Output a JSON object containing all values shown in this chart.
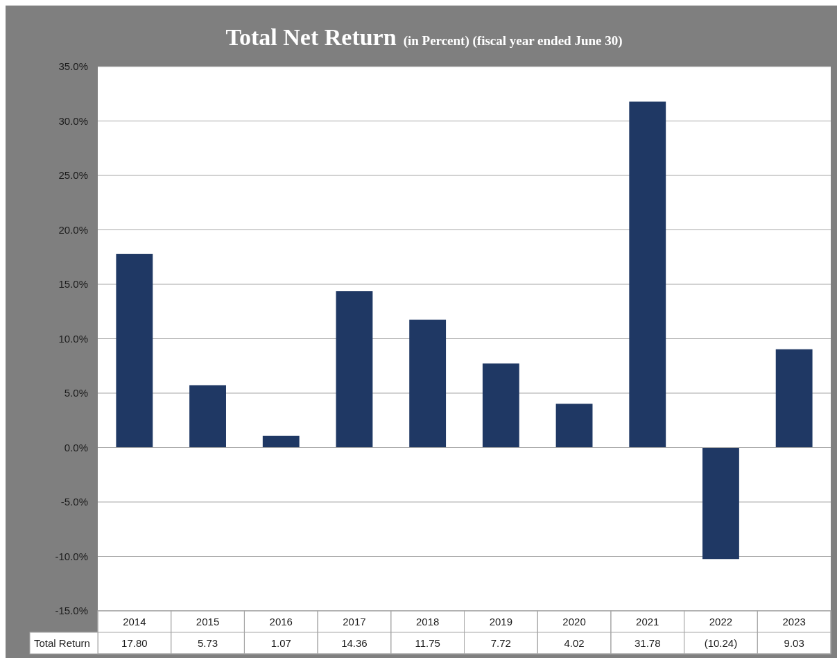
{
  "chart_data": {
    "type": "bar",
    "title": "Total Net Return",
    "subtitle": "(in Percent) (fiscal year ended June 30)",
    "categories": [
      "2014",
      "2015",
      "2016",
      "2017",
      "2018",
      "2019",
      "2020",
      "2021",
      "2022",
      "2023"
    ],
    "series": [
      {
        "name": "Total Return",
        "color": "#1f3864",
        "values": [
          17.8,
          5.73,
          1.07,
          14.36,
          11.75,
          7.72,
          4.02,
          31.78,
          -10.24,
          9.03
        ],
        "value_labels": [
          "17.80",
          "5.73",
          "1.07",
          "14.36",
          "11.75",
          "7.72",
          "4.02",
          "31.78",
          "(10.24)",
          "9.03"
        ]
      }
    ],
    "ylim": [
      -15,
      35
    ],
    "yticks": [
      {
        "value": -15,
        "label": "-15.0%"
      },
      {
        "value": -10,
        "label": "-10.0%"
      },
      {
        "value": -5,
        "label": "-5.0%"
      },
      {
        "value": 0,
        "label": "0.0%"
      },
      {
        "value": 5,
        "label": "5.0%"
      },
      {
        "value": 10,
        "label": "10.0%"
      },
      {
        "value": 15,
        "label": "15.0%"
      },
      {
        "value": 20,
        "label": "20.0%"
      },
      {
        "value": 25,
        "label": "25.0%"
      },
      {
        "value": 30,
        "label": "30.0%"
      },
      {
        "value": 35,
        "label": "35.0%"
      }
    ],
    "grid": "y"
  }
}
